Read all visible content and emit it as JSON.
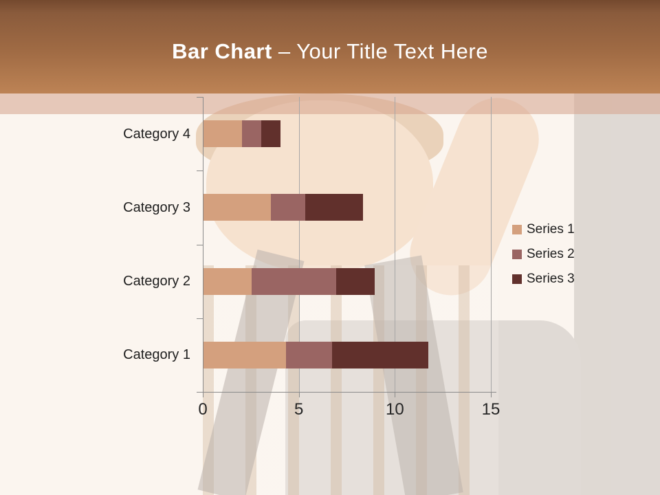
{
  "slide": {
    "title_bold": "Bar Chart",
    "title_rest": "– Your Title Text Here"
  },
  "colors": {
    "header_gradient_top": "#74492e",
    "header_gradient_bottom": "#bd8355",
    "pink_band": "rgba(213,163,140,0.55)",
    "background": "#fbf5ef",
    "gridline": "#a6a6a6",
    "axis": "#8a8a8a",
    "label_text": "#1d1d1d"
  },
  "chart_data": {
    "type": "bar",
    "orientation": "horizontal",
    "stacked": true,
    "categories": [
      "Category 1",
      "Category 2",
      "Category 3",
      "Category 4"
    ],
    "series": [
      {
        "name": "Series 1",
        "color": "#d4a07e",
        "values": [
          4.3,
          2.5,
          3.5,
          2
        ]
      },
      {
        "name": "Series 2",
        "color": "#9a6563",
        "values": [
          2.4,
          4.4,
          1.8,
          1
        ]
      },
      {
        "name": "Series 3",
        "color": "#61302c",
        "values": [
          5,
          2,
          3,
          1
        ]
      }
    ],
    "x_ticks": [
      "0",
      "5",
      "10",
      "15"
    ],
    "xlim": [
      0,
      15
    ],
    "gridlines": true,
    "legend_position": "right"
  }
}
